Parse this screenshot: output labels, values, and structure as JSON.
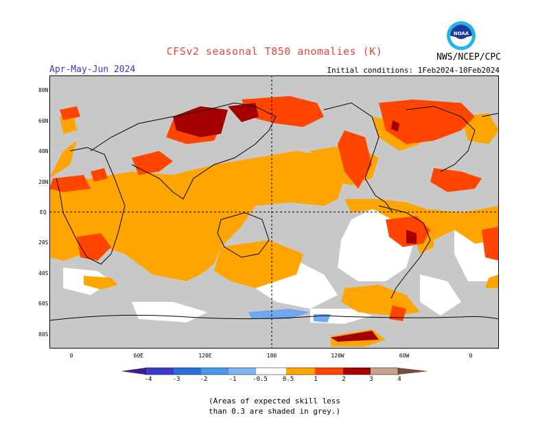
{
  "header": {
    "title": "CFSv2 seasonal T850 anomalies (K)",
    "season": "Apr-May-Jun 2024",
    "initial_conditions": "Initial conditions: 1Feb2024-10Feb2024",
    "agency": "NWS/NCEP/CPC",
    "logo_text": "NOAA"
  },
  "map": {
    "lat_labels": [
      "80N",
      "60N",
      "40N",
      "20N",
      "EQ",
      "20S",
      "40S",
      "60S",
      "80S"
    ],
    "lon_labels": [
      "0",
      "60E",
      "120E",
      "180",
      "120W",
      "60W",
      "0"
    ],
    "colors": {
      "ocean_grey": "#c8c8c8",
      "anom_0_5_1": "#ffa500",
      "anom_1_2": "#ff4500",
      "anom_2_3": "#a50000",
      "anom_neg_0_5_1": "#6fa8f0",
      "neutral": "#ffffff"
    }
  },
  "colorbar": {
    "labels": [
      "-4",
      "-3",
      "-2",
      "-1",
      "-0.5",
      "0.5",
      "1",
      "2",
      "3",
      "4"
    ],
    "colors": [
      "#3a1f8f",
      "#3d3dcc",
      "#2a6fdb",
      "#4a96ec",
      "#7cb5f2",
      "#ffffff",
      "#ffa500",
      "#ff4500",
      "#e01a00",
      "#a50000",
      "#c8a090",
      "#7a4a3a"
    ]
  },
  "footnote": {
    "line1": "(Areas of expected skill less",
    "line2": "than 0.3 are shaded in grey.)"
  }
}
